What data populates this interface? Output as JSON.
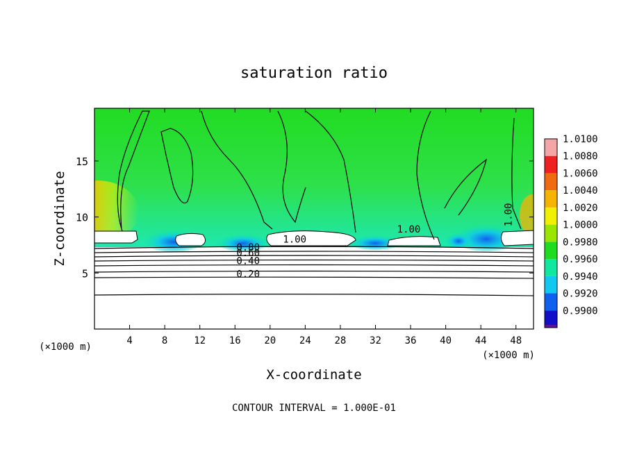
{
  "chart_data": {
    "type": "heatmap",
    "title": "saturation ratio",
    "xlabel": "X-coordinate",
    "ylabel": "Z-coordinate",
    "x_unit_left": "(×1000 m)",
    "x_unit_right": "(×1000 m)",
    "xlim": [
      0,
      50
    ],
    "ylim": [
      0,
      19.7
    ],
    "x_ticks": [
      4,
      8,
      12,
      16,
      20,
      24,
      28,
      32,
      36,
      40,
      44,
      48
    ],
    "y_ticks": [
      5,
      10,
      15
    ],
    "footer": "CONTOUR INTERVAL = 1.000E-01",
    "colorbar": {
      "levels": [
        {
          "label": "1.0100",
          "value": 1.01,
          "color": "#f4a6a6"
        },
        {
          "label": "1.0080",
          "value": 1.008,
          "color": "#f02020"
        },
        {
          "label": "1.0060",
          "value": 1.006,
          "color": "#f06a10"
        },
        {
          "label": "1.0040",
          "value": 1.004,
          "color": "#f4b400"
        },
        {
          "label": "1.0020",
          "value": 1.002,
          "color": "#f0f000"
        },
        {
          "label": "1.0000",
          "value": 1.0,
          "color": "#9ae600"
        },
        {
          "label": "0.9980",
          "value": 0.998,
          "color": "#20dc20"
        },
        {
          "label": "0.9960",
          "value": 0.996,
          "color": "#10e8a0"
        },
        {
          "label": "0.9940",
          "value": 0.994,
          "color": "#10c8f0"
        },
        {
          "label": "0.9920",
          "value": 0.992,
          "color": "#1060f0"
        },
        {
          "label": "0.9900",
          "value": 0.99,
          "color": "#1010c8"
        }
      ],
      "bottom_color": "#6010a0"
    },
    "contour_labels": [
      {
        "text": "1.00",
        "x": 22.8,
        "z": 7.7
      },
      {
        "text": "1.00",
        "x": 35.8,
        "z": 8.6
      },
      {
        "text": "1.00",
        "x": 47.5,
        "z": 10.2
      },
      {
        "text": "0.80",
        "x": 17.5,
        "z": 7.0
      },
      {
        "text": "0.60",
        "x": 17.5,
        "z": 6.5
      },
      {
        "text": "0.40",
        "x": 17.5,
        "z": 5.8
      },
      {
        "text": "0.20",
        "x": 17.5,
        "z": 4.6
      }
    ]
  }
}
